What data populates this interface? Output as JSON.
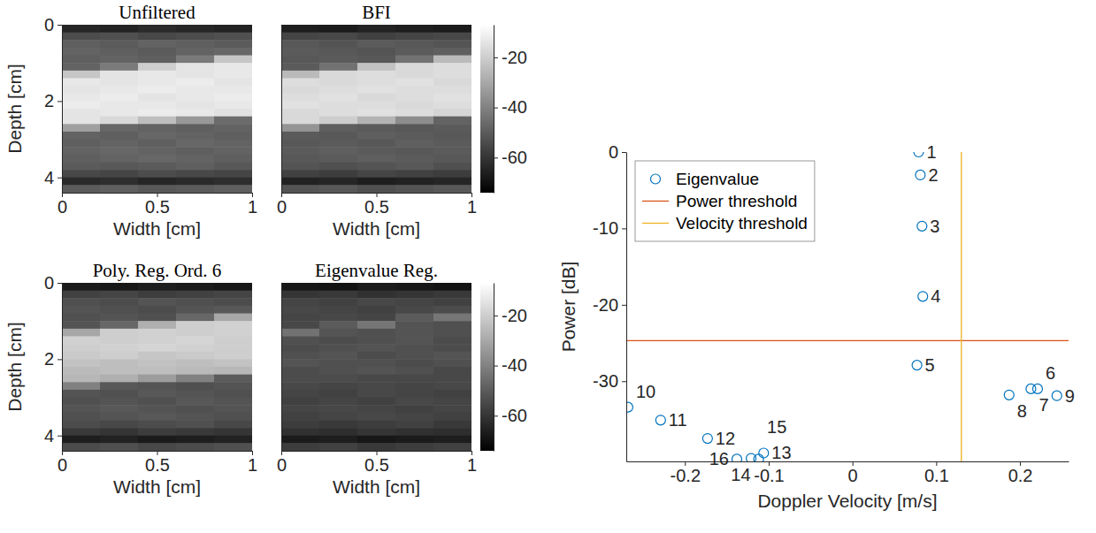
{
  "chart_data": [
    {
      "type": "heatmap",
      "title": "Unfiltered",
      "x_label": "Width [cm]",
      "y_label": "Depth [cm]",
      "xlim": [
        0,
        1
      ],
      "xticks": [
        0,
        0.5,
        1
      ],
      "ylim": [
        0,
        4.4
      ],
      "yticks": [
        0,
        2,
        4
      ],
      "x_edges": [
        0,
        0.2,
        0.4,
        0.6,
        0.8,
        1
      ],
      "y_edges": [
        0,
        0.2,
        0.4,
        0.6,
        0.8,
        1,
        1.2,
        1.4,
        1.6,
        1.8,
        2,
        2.2,
        2.4,
        2.6,
        2.8,
        3,
        3.2,
        3.4,
        3.6,
        3.8,
        4,
        4.2,
        4.4
      ],
      "cells": [
        [
          -64,
          -65,
          -63,
          -64,
          -65
        ],
        [
          -54,
          -53,
          -55,
          -54,
          -53
        ],
        [
          -49,
          -50,
          -48,
          -49,
          -50
        ],
        [
          -48,
          -49,
          -50,
          -48,
          -47
        ],
        [
          -49,
          -48,
          -49,
          -42,
          -22
        ],
        [
          -48,
          -42,
          -20,
          -14,
          -13
        ],
        [
          -22,
          -14,
          -13,
          -14,
          -13
        ],
        [
          -13,
          -14,
          -13,
          -12,
          -14
        ],
        [
          -14,
          -13,
          -12,
          -13,
          -13
        ],
        [
          -13,
          -12,
          -14,
          -13,
          -12
        ],
        [
          -12,
          -13,
          -13,
          -14,
          -13
        ],
        [
          -14,
          -13,
          -12,
          -13,
          -15
        ],
        [
          -14,
          -17,
          -24,
          -34,
          -46
        ],
        [
          -32,
          -47,
          -48,
          -49,
          -48
        ],
        [
          -48,
          -49,
          -47,
          -48,
          -49
        ],
        [
          -49,
          -48,
          -49,
          -47,
          -48
        ],
        [
          -48,
          -47,
          -48,
          -49,
          -48
        ],
        [
          -49,
          -48,
          -47,
          -48,
          -49
        ],
        [
          -50,
          -51,
          -50,
          -49,
          -51
        ],
        [
          -55,
          -56,
          -54,
          -55,
          -56
        ],
        [
          -63,
          -62,
          -64,
          -63,
          -62
        ],
        [
          -50,
          -49,
          -51,
          -50,
          -49
        ]
      ]
    },
    {
      "type": "heatmap",
      "title": "BFI",
      "x_label": "Width [cm]",
      "tick_labels": "x",
      "xlim": [
        0,
        1
      ],
      "xticks": [
        0,
        0.5,
        1
      ],
      "ylim": [
        0,
        4.4
      ],
      "x_edges": [
        0,
        0.2,
        0.4,
        0.6,
        0.8,
        1
      ],
      "y_edges": [
        0,
        0.2,
        0.4,
        0.6,
        0.8,
        1,
        1.2,
        1.4,
        1.6,
        1.8,
        2,
        2.2,
        2.4,
        2.6,
        2.8,
        3,
        3.2,
        3.4,
        3.6,
        3.8,
        4,
        4.2,
        4.4
      ],
      "cells": [
        [
          -66,
          -67,
          -65,
          -66,
          -67
        ],
        [
          -56,
          -55,
          -57,
          -56,
          -55
        ],
        [
          -51,
          -52,
          -50,
          -51,
          -52
        ],
        [
          -50,
          -51,
          -52,
          -50,
          -49
        ],
        [
          -51,
          -50,
          -51,
          -44,
          -25
        ],
        [
          -50,
          -44,
          -23,
          -17,
          -16
        ],
        [
          -25,
          -17,
          -16,
          -17,
          -16
        ],
        [
          -16,
          -17,
          -16,
          -15,
          -17
        ],
        [
          -17,
          -16,
          -15,
          -16,
          -16
        ],
        [
          -16,
          -15,
          -17,
          -16,
          -15
        ],
        [
          -15,
          -16,
          -16,
          -17,
          -16
        ],
        [
          -17,
          -16,
          -15,
          -16,
          -18
        ],
        [
          -17,
          -20,
          -27,
          -37,
          -48
        ],
        [
          -35,
          -49,
          -50,
          -51,
          -50
        ],
        [
          -50,
          -51,
          -49,
          -50,
          -51
        ],
        [
          -51,
          -50,
          -51,
          -49,
          -50
        ],
        [
          -50,
          -49,
          -50,
          -51,
          -50
        ],
        [
          -51,
          -50,
          -49,
          -50,
          -51
        ],
        [
          -52,
          -53,
          -52,
          -51,
          -53
        ],
        [
          -57,
          -58,
          -56,
          -57,
          -58
        ],
        [
          -65,
          -64,
          -66,
          -65,
          -64
        ],
        [
          -52,
          -51,
          -53,
          -52,
          -51
        ]
      ],
      "colorbar": {
        "range": [
          -74,
          -7
        ],
        "ticks": [
          -20,
          -40,
          -60
        ]
      }
    },
    {
      "type": "heatmap",
      "title": "Poly. Reg. Ord. 6",
      "x_label": "Width [cm]",
      "y_label": "Depth [cm]",
      "xlim": [
        0,
        1
      ],
      "xticks": [
        0,
        0.5,
        1
      ],
      "ylim": [
        0,
        4.4
      ],
      "yticks": [
        0,
        2,
        4
      ],
      "x_edges": [
        0,
        0.2,
        0.4,
        0.6,
        0.8,
        1
      ],
      "y_edges": [
        0,
        0.2,
        0.4,
        0.6,
        0.8,
        1,
        1.2,
        1.4,
        1.6,
        1.8,
        2,
        2.2,
        2.4,
        2.6,
        2.8,
        3,
        3.2,
        3.4,
        3.6,
        3.8,
        4,
        4.2,
        4.4
      ],
      "cells": [
        [
          -67,
          -68,
          -66,
          -67,
          -68
        ],
        [
          -57,
          -56,
          -58,
          -57,
          -56
        ],
        [
          -53,
          -54,
          -52,
          -53,
          -54
        ],
        [
          -52,
          -53,
          -54,
          -52,
          -51
        ],
        [
          -53,
          -52,
          -53,
          -47,
          -30
        ],
        [
          -52,
          -47,
          -28,
          -20,
          -19
        ],
        [
          -30,
          -20,
          -19,
          -20,
          -19
        ],
        [
          -19,
          -20,
          -19,
          -18,
          -20
        ],
        [
          -20,
          -19,
          -18,
          -19,
          -20
        ],
        [
          -21,
          -20,
          -22,
          -21,
          -20
        ],
        [
          -23,
          -24,
          -23,
          -24,
          -23
        ],
        [
          -25,
          -24,
          -24,
          -25,
          -26
        ],
        [
          -26,
          -28,
          -33,
          -40,
          -50
        ],
        [
          -40,
          -51,
          -52,
          -53,
          -52
        ],
        [
          -52,
          -53,
          -51,
          -52,
          -53
        ],
        [
          -53,
          -52,
          -53,
          -51,
          -52
        ],
        [
          -52,
          -51,
          -52,
          -53,
          -52
        ],
        [
          -53,
          -52,
          -51,
          -52,
          -53
        ],
        [
          -54,
          -55,
          -54,
          -53,
          -55
        ],
        [
          -59,
          -60,
          -58,
          -59,
          -60
        ],
        [
          -66,
          -65,
          -67,
          -66,
          -65
        ],
        [
          -54,
          -53,
          -55,
          -54,
          -53
        ]
      ]
    },
    {
      "type": "heatmap",
      "title": "Eigenvalue Reg.",
      "x_label": "Width [cm]",
      "tick_labels": "x",
      "xlim": [
        0,
        1
      ],
      "xticks": [
        0,
        0.5,
        1
      ],
      "ylim": [
        0,
        4.4
      ],
      "x_edges": [
        0,
        0.2,
        0.4,
        0.6,
        0.8,
        1
      ],
      "y_edges": [
        0,
        0.2,
        0.4,
        0.6,
        0.8,
        1,
        1.2,
        1.4,
        1.6,
        1.8,
        2,
        2.2,
        2.4,
        2.6,
        2.8,
        3,
        3.2,
        3.4,
        3.6,
        3.8,
        4,
        4.2,
        4.4
      ],
      "cells": [
        [
          -68,
          -69,
          -67,
          -68,
          -69
        ],
        [
          -60,
          -59,
          -61,
          -60,
          -59
        ],
        [
          -56,
          -57,
          -55,
          -56,
          -57
        ],
        [
          -55,
          -56,
          -57,
          -55,
          -54
        ],
        [
          -56,
          -55,
          -56,
          -50,
          -43
        ],
        [
          -55,
          -50,
          -43,
          -52,
          -53
        ],
        [
          -44,
          -52,
          -53,
          -52,
          -53
        ],
        [
          -53,
          -54,
          -53,
          -52,
          -54
        ],
        [
          -54,
          -53,
          -52,
          -53,
          -54
        ],
        [
          -53,
          -52,
          -54,
          -53,
          -52
        ],
        [
          -52,
          -53,
          -53,
          -54,
          -53
        ],
        [
          -54,
          -53,
          -52,
          -53,
          -55
        ],
        [
          -54,
          -54,
          -55,
          -55,
          -55
        ],
        [
          -55,
          -56,
          -55,
          -56,
          -55
        ],
        [
          -56,
          -57,
          -55,
          -56,
          -57
        ],
        [
          -57,
          -56,
          -57,
          -55,
          -56
        ],
        [
          -56,
          -55,
          -56,
          -57,
          -56
        ],
        [
          -57,
          -56,
          -55,
          -56,
          -57
        ],
        [
          -58,
          -59,
          -58,
          -57,
          -59
        ],
        [
          -61,
          -62,
          -60,
          -61,
          -62
        ],
        [
          -67,
          -66,
          -68,
          -67,
          -66
        ],
        [
          -58,
          -57,
          -59,
          -58,
          -57
        ]
      ],
      "colorbar": {
        "range": [
          -74,
          -7
        ],
        "ticks": [
          -20,
          -40,
          -60
        ]
      }
    },
    {
      "type": "scatter",
      "x_label": "Doppler Velocity [m/s]",
      "y_label": "Power [dB]",
      "xlim": [
        -0.27,
        0.258
      ],
      "xticks": [
        -0.2,
        -0.1,
        0,
        0.1,
        0.2
      ],
      "ylim": [
        -40.5,
        0
      ],
      "yticks": [
        -30,
        -20,
        -10,
        0
      ],
      "legend": "upper left",
      "series": [
        {
          "name": "Eigenvalue",
          "type": "scatter",
          "color": "#0072bd",
          "marker": "circle",
          "x": [
            0.079,
            0.081,
            0.083,
            0.084,
            0.077,
            0.221,
            0.213,
            0.187,
            0.244,
            -0.268,
            -0.229,
            -0.173,
            -0.106,
            -0.112,
            -0.121,
            -0.138
          ],
          "values": [
            0,
            -3,
            -9.7,
            -18.9,
            -27.9,
            -31,
            -31,
            -31.8,
            -31.9,
            -33.4,
            -35.1,
            -37.5,
            -39.4,
            -40.2,
            -40.1,
            -40.2
          ],
          "point_labels": [
            "1",
            "2",
            "3",
            "4",
            "5",
            "6",
            "7",
            "8",
            "9",
            "10",
            "11",
            "12",
            "13",
            "14",
            "15",
            "16"
          ]
        },
        {
          "name": "Power threshold",
          "type": "hline",
          "color": "#d95319",
          "line_style": "solid",
          "values": [
            -24.7
          ]
        },
        {
          "name": "Velocity threshold",
          "type": "vline",
          "color": "#edb120",
          "line_style": "solid",
          "x": [
            0.13
          ]
        }
      ]
    }
  ]
}
